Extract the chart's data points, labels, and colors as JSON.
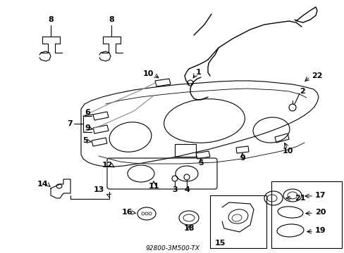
{
  "title": "92800-3M500-TX",
  "bg_color": "#ffffff",
  "line_color": "#000000",
  "fig_width": 4.89,
  "fig_height": 3.6,
  "dpi": 100
}
